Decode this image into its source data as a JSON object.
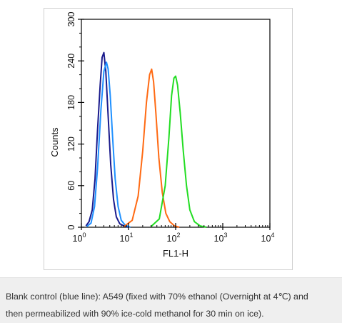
{
  "chart_data": {
    "type": "line",
    "x_scale": "log",
    "xlim": [
      1,
      10000
    ],
    "ylim": [
      0,
      300
    ],
    "xlabel": "FL1-H",
    "ylabel": "Counts",
    "y_ticks": [
      "0",
      "60",
      "120",
      "180",
      "240",
      "300"
    ],
    "x_ticks": [
      {
        "base": "10",
        "exp": "0"
      },
      {
        "base": "10",
        "exp": "1"
      },
      {
        "base": "10",
        "exp": "2"
      },
      {
        "base": "10",
        "exp": "3"
      },
      {
        "base": "10",
        "exp": "4"
      }
    ],
    "grid": false,
    "series": [
      {
        "color": "#1a1a8c",
        "x": [
          1.25,
          1.45,
          1.7,
          1.95,
          2.2,
          2.5,
          2.75,
          3.0,
          3.3,
          3.7,
          4.2,
          4.8,
          5.5,
          6.5,
          8.0,
          10.0
        ],
        "y": [
          2,
          8,
          25,
          70,
          140,
          205,
          245,
          252,
          225,
          160,
          90,
          40,
          15,
          5,
          2,
          0
        ]
      },
      {
        "color": "#1e90ff",
        "x": [
          1.3,
          1.6,
          1.9,
          2.2,
          2.6,
          3.0,
          3.4,
          3.7,
          4.1,
          4.6,
          5.2,
          6.0,
          7.0,
          8.5,
          11.0
        ],
        "y": [
          1,
          6,
          30,
          85,
          170,
          225,
          238,
          228,
          190,
          130,
          70,
          30,
          10,
          3,
          0
        ]
      },
      {
        "color": "#ff6a13",
        "x": [
          8.0,
          12.0,
          16.0,
          20.0,
          24.0,
          28.0,
          31.0,
          34.0,
          38.0,
          44.0,
          52.0,
          62.0,
          75.0,
          95.0,
          120.0
        ],
        "y": [
          1,
          10,
          45,
          110,
          180,
          220,
          228,
          210,
          165,
          100,
          50,
          20,
          8,
          2,
          0
        ]
      },
      {
        "color": "#22dd22",
        "x": [
          30.0,
          45.0,
          60.0,
          72.0,
          82.0,
          92.0,
          100.0,
          110.0,
          125.0,
          145.0,
          170.0,
          200.0,
          250.0,
          330.0,
          450.0
        ],
        "y": [
          1,
          12,
          60,
          130,
          190,
          215,
          218,
          205,
          165,
          110,
          60,
          25,
          8,
          2,
          0
        ]
      }
    ]
  },
  "caption": {
    "line1": "Blank control (blue line): A549 (fixed with 70% ethanol (Overnight at 4℃) and",
    "line2": "then permeabilized with 90% ice-cold methanol for 30 min on ice)."
  }
}
